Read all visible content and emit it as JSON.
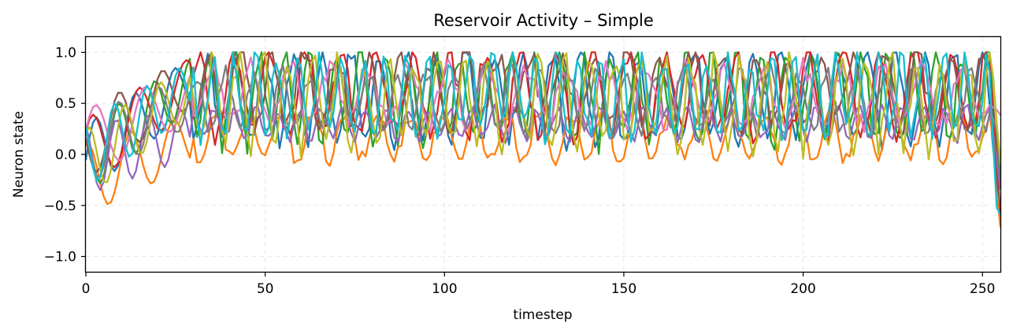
{
  "chart_data": {
    "type": "line",
    "title": "Reservoir Activity – Simple",
    "xlabel": "timestep",
    "ylabel": "Neuron state",
    "xlim": [
      0,
      255
    ],
    "ylim": [
      -1.15,
      1.15
    ],
    "grid": true,
    "xticks": [
      0,
      50,
      100,
      150,
      200,
      250
    ],
    "yticks": [
      -1.0,
      -0.5,
      0.0,
      0.5,
      1.0
    ],
    "xtick_labels": [
      "0",
      "50",
      "100",
      "150",
      "200",
      "250"
    ],
    "ytick_labels": [
      "−1.0",
      "−0.5",
      "0.0",
      "0.5",
      "1.0"
    ],
    "series": [
      {
        "color": "#1f77b4",
        "period": 8,
        "phase": 0.0,
        "low": 0.15,
        "high": 1.0,
        "wobble": 0.12
      },
      {
        "color": "#ff7f0e",
        "period": 9,
        "phase": 1.3,
        "low": -0.05,
        "high": 0.4,
        "wobble": 0.08
      },
      {
        "color": "#2ca02c",
        "period": 7,
        "phase": 2.1,
        "low": 0.15,
        "high": 1.0,
        "wobble": 0.15
      },
      {
        "color": "#d62728",
        "period": 10,
        "phase": 0.7,
        "low": 0.2,
        "high": 1.0,
        "wobble": 0.12
      },
      {
        "color": "#9467bd",
        "period": 6,
        "phase": 1.9,
        "low": 0.15,
        "high": 0.45,
        "wobble": 0.05
      },
      {
        "color": "#8c564b",
        "period": 9,
        "phase": 3.0,
        "low": 0.3,
        "high": 1.0,
        "wobble": 0.14
      },
      {
        "color": "#e377c2",
        "period": 11,
        "phase": 0.4,
        "low": 0.3,
        "high": 0.85,
        "wobble": 0.1
      },
      {
        "color": "#7f7f7f",
        "period": 8,
        "phase": 2.6,
        "low": 0.25,
        "high": 0.8,
        "wobble": 0.1
      },
      {
        "color": "#bcbd22",
        "period": 7,
        "phase": 1.1,
        "low": 0.1,
        "high": 0.95,
        "wobble": 0.15
      },
      {
        "color": "#17becf",
        "period": 6,
        "phase": 2.3,
        "low": 0.2,
        "high": 0.95,
        "wobble": 0.14
      }
    ]
  }
}
